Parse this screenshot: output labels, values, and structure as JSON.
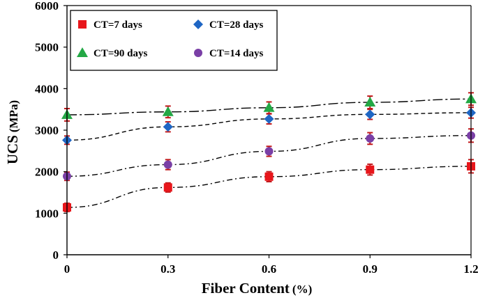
{
  "chart_data": {
    "type": "scatter",
    "title": "",
    "xlabel": "Fiber Content (%)",
    "xlabel_main": "Fiber Content",
    "xlabel_unit": "(%)",
    "ylabel": "UCS (MPa)",
    "ylabel_main": "UCS",
    "ylabel_unit": "(MPa)",
    "xlim": [
      0,
      1.2
    ],
    "ylim": [
      0,
      6000
    ],
    "x_ticks": [
      "0",
      "0.3",
      "0.6",
      "0.9",
      "1.2"
    ],
    "y_ticks": [
      "0",
      "1000",
      "2000",
      "3000",
      "4000",
      "5000",
      "6000"
    ],
    "grid": false,
    "legend_position": "top-left",
    "x": [
      0,
      0.3,
      0.6,
      0.9,
      1.2
    ],
    "series": [
      {
        "name": "CT=7 days",
        "marker": "square",
        "color": "#e8161b",
        "trend_style": "dash-dot",
        "values": [
          1140,
          1620,
          1880,
          2050,
          2130
        ],
        "errors": [
          100,
          110,
          120,
          130,
          160
        ]
      },
      {
        "name": "CT=28 days",
        "marker": "diamond",
        "color": "#1f66c4",
        "trend_style": "dashed",
        "values": [
          2760,
          3080,
          3270,
          3380,
          3420
        ],
        "errors": [
          100,
          120,
          120,
          120,
          130
        ]
      },
      {
        "name": "CT=90 days",
        "marker": "triangle",
        "color": "#23a845",
        "trend_style": "long-dash-dot",
        "values": [
          3370,
          3440,
          3540,
          3670,
          3750
        ],
        "errors": [
          150,
          140,
          140,
          150,
          150
        ]
      },
      {
        "name": "CT=14 days",
        "marker": "circle",
        "color": "#7a3fa6",
        "trend_style": "dash-dot",
        "values": [
          1890,
          2170,
          2490,
          2800,
          2870
        ],
        "errors": [
          100,
          120,
          120,
          140,
          160
        ]
      }
    ]
  },
  "colors": {
    "axis": "#000000",
    "error_bar": "#c0181b",
    "trend_line": "#000000"
  }
}
